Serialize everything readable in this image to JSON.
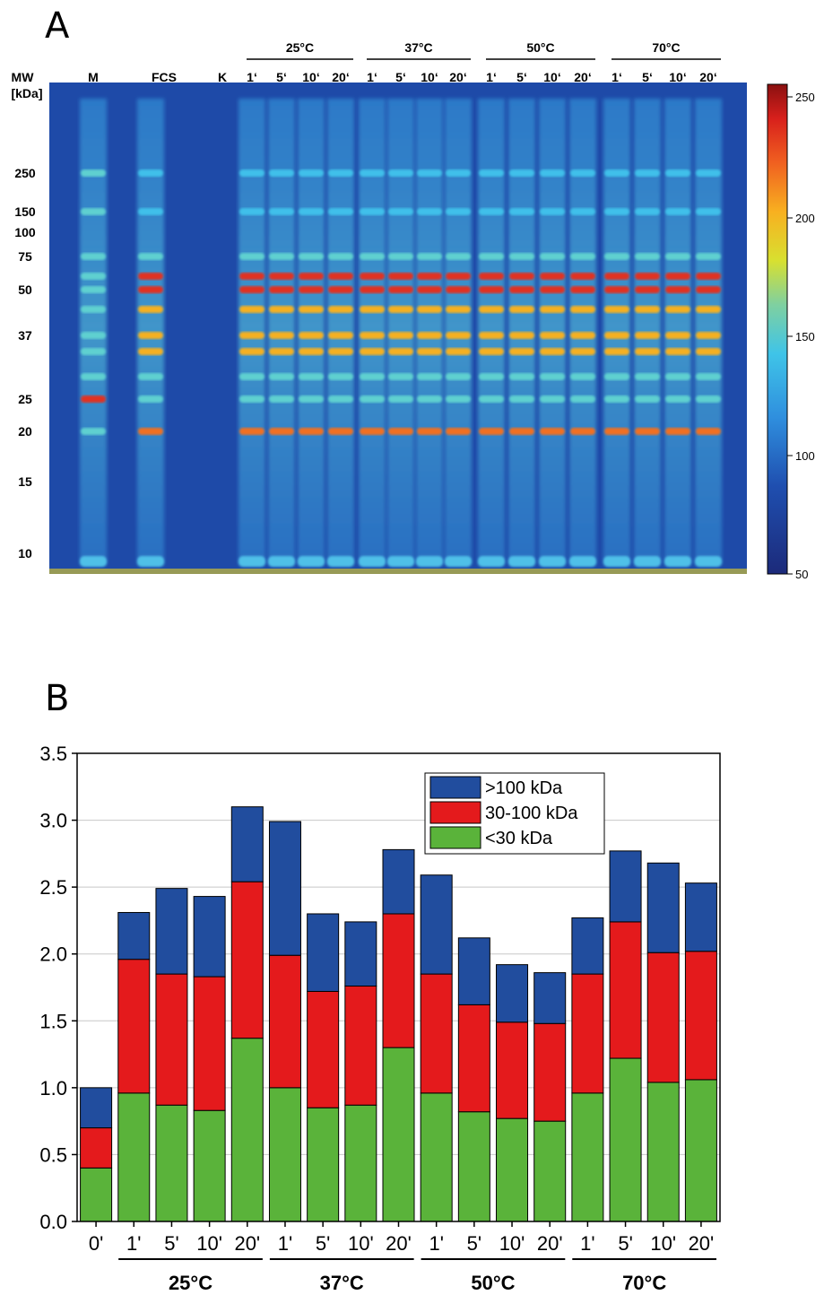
{
  "panel_a": {
    "letter": "A",
    "mw_header": [
      "MW",
      "[kDa]"
    ],
    "mw_markers": [
      "250",
      "150",
      "100",
      "75",
      "50",
      "37",
      "25",
      "20",
      "15",
      "10"
    ],
    "lane_labels_left": [
      "M",
      "FCS",
      "K"
    ],
    "temperature_groups": [
      {
        "label": "25°C",
        "times": [
          "1‘",
          "5‘",
          "10‘",
          "20‘"
        ]
      },
      {
        "label": "37°C",
        "times": [
          "1‘",
          "5‘",
          "10‘",
          "20‘"
        ]
      },
      {
        "label": "50°C",
        "times": [
          "1‘",
          "5‘",
          "10‘",
          "20‘"
        ]
      },
      {
        "label": "70°C",
        "times": [
          "1‘",
          "5‘",
          "10‘",
          "20‘"
        ]
      }
    ],
    "colorbar_ticks": [
      "250",
      "200",
      "150",
      "100",
      "50"
    ]
  },
  "chart_data": {
    "type": "bar",
    "stacked": true,
    "panel_letter": "B",
    "categories": [
      "0'",
      "1'",
      "5'",
      "10'",
      "20'",
      "1'",
      "5'",
      "10'",
      "20'",
      "1'",
      "5'",
      "10'",
      "20'",
      "1'",
      "5'",
      "10'",
      "20'"
    ],
    "groups": [
      {
        "label": "25°C",
        "from": 1,
        "to": 4
      },
      {
        "label": "37°C",
        "from": 5,
        "to": 8
      },
      {
        "label": "50°C",
        "from": 9,
        "to": 12
      },
      {
        "label": "70°C",
        "from": 13,
        "to": 16
      }
    ],
    "series": [
      {
        "name": "<30 kDa",
        "color": "#5ab33a",
        "values": [
          0.4,
          0.96,
          0.87,
          0.83,
          1.37,
          1.0,
          0.85,
          0.87,
          1.3,
          0.96,
          0.82,
          0.77,
          0.75,
          0.96,
          1.22,
          1.04,
          1.06
        ]
      },
      {
        "name": "30-100 kDa",
        "color": "#e41a1c",
        "values": [
          0.3,
          1.0,
          0.98,
          1.0,
          1.17,
          0.99,
          0.87,
          0.89,
          1.0,
          0.89,
          0.8,
          0.72,
          0.73,
          0.89,
          1.02,
          0.97,
          0.96
        ]
      },
      {
        "name": ">100 kDa",
        "color": "#214d9e",
        "values": [
          0.3,
          0.35,
          0.64,
          0.6,
          0.56,
          1.0,
          0.58,
          0.48,
          0.48,
          0.74,
          0.5,
          0.43,
          0.38,
          0.42,
          0.53,
          0.67,
          0.51
        ]
      }
    ],
    "legend_order": [
      ">100 kDa",
      "30-100 kDa",
      "<30 kDa"
    ],
    "legend_position": "top-right",
    "ylim": [
      0,
      3.5
    ],
    "yticks": [
      "0.0",
      "0.5",
      "1.0",
      "1.5",
      "2.0",
      "2.5",
      "3.0",
      "3.5"
    ],
    "grid": "horizontal",
    "xlabel": "",
    "ylabel": ""
  }
}
